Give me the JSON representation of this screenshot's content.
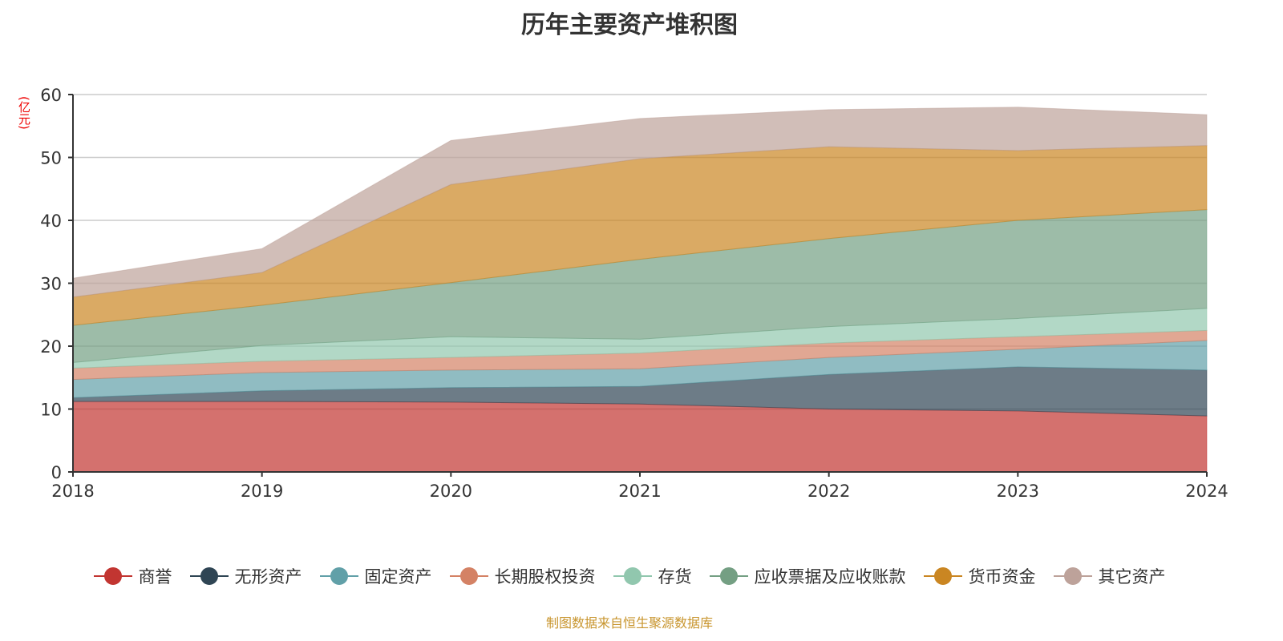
{
  "chart_data": {
    "type": "area",
    "stacked": true,
    "title": "历年主要资产堆积图",
    "ylabel": "(亿元)",
    "xlabel": "",
    "ylim": [
      0,
      60
    ],
    "yticks": [
      "0",
      "10",
      "20",
      "30",
      "40",
      "50",
      "60"
    ],
    "categories": [
      "2018",
      "2019",
      "2020",
      "2021",
      "2022",
      "2023",
      "2024"
    ],
    "legend_position": "bottom",
    "series": [
      {
        "name": "商誉",
        "color": "#c23531",
        "values": [
          11.2,
          11.2,
          11.1,
          10.8,
          10.0,
          9.7,
          8.9
        ]
      },
      {
        "name": "无形资产",
        "color": "#2f4554",
        "values": [
          0.6,
          1.7,
          2.3,
          2.8,
          5.5,
          7.0,
          7.3
        ]
      },
      {
        "name": "固定资产",
        "color": "#61a0a8",
        "values": [
          2.9,
          2.9,
          2.8,
          2.8,
          2.7,
          2.8,
          4.7
        ]
      },
      {
        "name": "长期股权投资",
        "color": "#d48265",
        "values": [
          1.8,
          1.8,
          2.0,
          2.5,
          2.3,
          2.0,
          1.6
        ]
      },
      {
        "name": "存货",
        "color": "#91c7ae",
        "values": [
          0.9,
          2.5,
          3.3,
          2.2,
          2.6,
          2.9,
          3.5
        ]
      },
      {
        "name": "应收票据及应收账款",
        "color": "#749f83",
        "values": [
          5.9,
          6.4,
          8.6,
          12.7,
          14.0,
          15.6,
          15.7
        ]
      },
      {
        "name": "货币资金",
        "color": "#ca8622",
        "values": [
          4.5,
          5.2,
          15.6,
          16.0,
          14.6,
          11.1,
          10.2
        ]
      },
      {
        "name": "其它资产",
        "color": "#bda29a",
        "values": [
          3.0,
          3.8,
          7.0,
          6.4,
          5.9,
          6.9,
          4.9
        ]
      }
    ]
  },
  "source": "制图数据来自恒生聚源数据库"
}
